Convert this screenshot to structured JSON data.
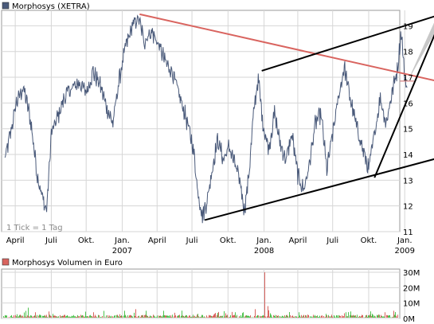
{
  "chart_data": [
    {
      "type": "line",
      "legend": "Morphosys (XETRA)",
      "legend_color": "#4a5a7a",
      "note": "1 Tick = 1 Tag",
      "ylim": [
        11,
        19.6
      ],
      "y_ticks": [
        11,
        12,
        13,
        14,
        15,
        16,
        17,
        18,
        19
      ],
      "x_ticks": [
        {
          "label": "April",
          "sub": ""
        },
        {
          "label": "Juli",
          "sub": ""
        },
        {
          "label": "Okt.",
          "sub": ""
        },
        {
          "label": "Jan.",
          "sub": "2007"
        },
        {
          "label": "April",
          "sub": ""
        },
        {
          "label": "Juli",
          "sub": ""
        },
        {
          "label": "Okt.",
          "sub": ""
        },
        {
          "label": "Jan.",
          "sub": "2008"
        },
        {
          "label": "April",
          "sub": ""
        },
        {
          "label": "Juli",
          "sub": ""
        },
        {
          "label": "Okt.",
          "sub": ""
        },
        {
          "label": "Jan.",
          "sub": "2009"
        }
      ],
      "x_tick_index": [
        0.9,
        4,
        7,
        10.1,
        13.1,
        16.1,
        19.2,
        22.3,
        25.2,
        28.2,
        31.3,
        34.4
      ],
      "price_anchors": [
        [
          0,
          13.8
        ],
        [
          0.4,
          14.6
        ],
        [
          1.0,
          16.0
        ],
        [
          1.6,
          16.6
        ],
        [
          2.2,
          15.4
        ],
        [
          2.8,
          13.2
        ],
        [
          3.3,
          12.2
        ],
        [
          3.6,
          11.8
        ],
        [
          4.0,
          14.8
        ],
        [
          4.6,
          15.5
        ],
        [
          5.2,
          16.3
        ],
        [
          5.8,
          16.6
        ],
        [
          6.4,
          16.8
        ],
        [
          7.0,
          16.4
        ],
        [
          7.6,
          17.2
        ],
        [
          8.2,
          16.7
        ],
        [
          8.8,
          15.8
        ],
        [
          9.3,
          15.2
        ],
        [
          9.8,
          16.8
        ],
        [
          10.4,
          18.2
        ],
        [
          11.0,
          19.0
        ],
        [
          11.5,
          19.3
        ],
        [
          12.0,
          18.4
        ],
        [
          12.6,
          18.8
        ],
        [
          13.2,
          18.3
        ],
        [
          13.8,
          17.6
        ],
        [
          14.4,
          17.2
        ],
        [
          15.0,
          16.3
        ],
        [
          15.6,
          15.4
        ],
        [
          16.2,
          14.3
        ],
        [
          16.6,
          12.6
        ],
        [
          17.0,
          11.6
        ],
        [
          17.4,
          12.2
        ],
        [
          17.8,
          13.3
        ],
        [
          18.3,
          14.6
        ],
        [
          18.8,
          13.8
        ],
        [
          19.3,
          14.3
        ],
        [
          19.8,
          13.6
        ],
        [
          20.3,
          12.8
        ],
        [
          20.6,
          11.8
        ],
        [
          21.0,
          13.2
        ],
        [
          21.4,
          15.6
        ],
        [
          21.8,
          17.0
        ],
        [
          22.2,
          15.2
        ],
        [
          22.7,
          14.2
        ],
        [
          23.2,
          15.6
        ],
        [
          23.7,
          14.4
        ],
        [
          24.2,
          13.8
        ],
        [
          24.7,
          14.8
        ],
        [
          25.2,
          13.2
        ],
        [
          25.7,
          12.6
        ],
        [
          26.2,
          13.6
        ],
        [
          26.7,
          15.2
        ],
        [
          27.2,
          15.6
        ],
        [
          27.7,
          13.4
        ],
        [
          28.2,
          14.8
        ],
        [
          28.7,
          16.2
        ],
        [
          29.2,
          17.4
        ],
        [
          29.7,
          16.2
        ],
        [
          30.2,
          15.2
        ],
        [
          30.8,
          14.2
        ],
        [
          31.3,
          13.4
        ],
        [
          31.8,
          14.8
        ],
        [
          32.3,
          16.2
        ],
        [
          32.8,
          15.2
        ],
        [
          33.3,
          16.4
        ],
        [
          33.8,
          17.4
        ],
        [
          34.1,
          18.8
        ],
        [
          34.4,
          17.0
        ],
        [
          34.6,
          16.6
        ]
      ],
      "trendlines": [
        {
          "color": "#d9645f",
          "points": [
            [
              11.6,
              19.45
            ],
            [
              37.2,
              16.85
            ]
          ]
        },
        {
          "color": "#000000",
          "points": [
            [
              22.1,
              17.25
            ],
            [
              37.2,
              19.4
            ]
          ]
        },
        {
          "color": "#000000",
          "points": [
            [
              17.2,
              11.45
            ],
            [
              37.2,
              13.85
            ]
          ]
        },
        {
          "color": "#000000",
          "points": [
            [
              31.8,
              13.1
            ],
            [
              37.2,
              18.9
            ]
          ]
        },
        {
          "color": "#cc6666",
          "points": [
            [
              34.0,
              16.85
            ],
            [
              35.2,
              16.85
            ]
          ]
        }
      ],
      "triangle_fill": {
        "color": "#c8c8c8",
        "points": [
          [
            34.6,
            16.8
          ],
          [
            37.2,
            19.4
          ],
          [
            37.2,
            18.9
          ]
        ]
      }
    },
    {
      "type": "bar",
      "legend": "Morphosys Volumen in Euro",
      "legend_color": "#d9645f",
      "ylim": [
        0,
        30
      ],
      "y_ticks": [
        "0M",
        "10M",
        "20M",
        "30M"
      ],
      "y_values": [
        0,
        10,
        20,
        30
      ],
      "spikes": [
        [
          2.0,
          7
        ],
        [
          2.6,
          4
        ],
        [
          4.1,
          3
        ],
        [
          7.6,
          4
        ],
        [
          10.3,
          5
        ],
        [
          11.2,
          6
        ],
        [
          13.6,
          5
        ],
        [
          16.6,
          3
        ],
        [
          18.0,
          3
        ],
        [
          19.8,
          4
        ],
        [
          21.5,
          6
        ],
        [
          22.3,
          30
        ],
        [
          22.6,
          8
        ],
        [
          25.3,
          4
        ],
        [
          27.6,
          3
        ],
        [
          29.3,
          4
        ],
        [
          31.6,
          3
        ],
        [
          32.7,
          4
        ],
        [
          33.4,
          5
        ],
        [
          34.0,
          7
        ],
        [
          34.3,
          9
        ],
        [
          34.6,
          5
        ]
      ]
    }
  ]
}
